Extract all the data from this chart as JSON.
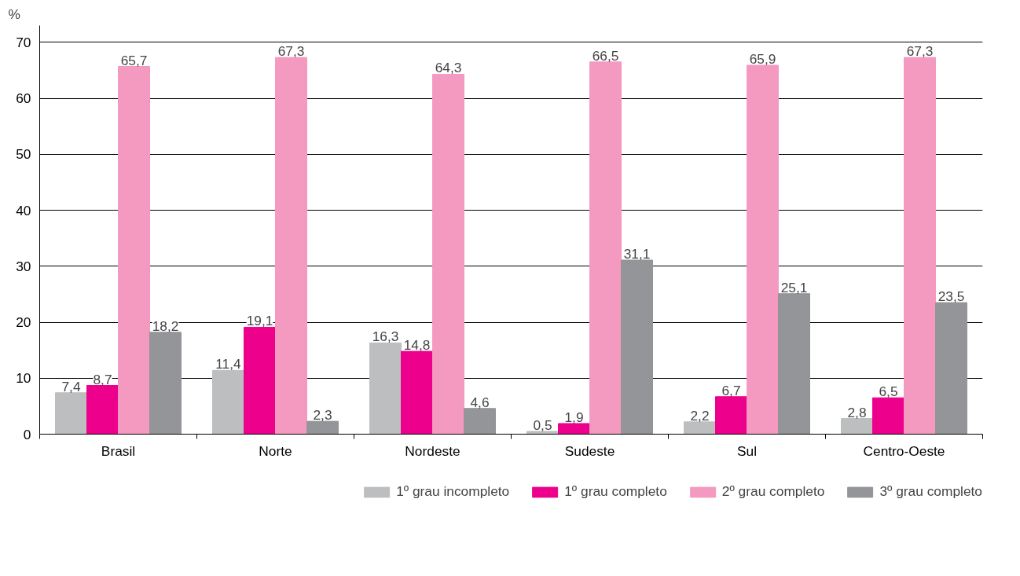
{
  "chart_data": {
    "type": "bar",
    "ylabel": "%",
    "categories": [
      "Brasil",
      "Norte",
      "Nordeste",
      "Sudeste",
      "Sul",
      "Centro-Oeste"
    ],
    "series": [
      {
        "name": "1º grau incompleto",
        "color": "#bcbec0",
        "values": [
          7.4,
          11.4,
          16.3,
          0.5,
          2.2,
          2.8
        ],
        "value_labels": [
          "7,4",
          "11,4",
          "16,3",
          "0,5",
          "2,2",
          "2,8"
        ]
      },
      {
        "name": "1º grau completo",
        "color": "#ec008c",
        "values": [
          8.7,
          19.1,
          14.8,
          1.9,
          6.7,
          6.5
        ],
        "value_labels": [
          "8,7",
          "19,1",
          "14,8",
          "1,9",
          "6,7",
          "6,5"
        ]
      },
      {
        "name": "2º grau completo",
        "color": "#f49ac1",
        "values": [
          65.7,
          67.3,
          64.3,
          66.5,
          65.9,
          67.3
        ],
        "value_labels": [
          "65,7",
          "67,3",
          "64,3",
          "66,5",
          "65,9",
          "67,3"
        ]
      },
      {
        "name": "3º grau completo",
        "color": "#939598",
        "values": [
          18.2,
          2.3,
          4.6,
          31.1,
          25.1,
          23.5
        ],
        "value_labels": [
          "18,2",
          "2,3",
          "4,6",
          "31,1",
          "25,1",
          "23,5"
        ]
      }
    ],
    "ylim": [
      0,
      73
    ],
    "yticks": [
      0,
      10,
      20,
      30,
      40,
      50,
      60,
      70
    ],
    "grid": "y",
    "legend": "bottom right"
  }
}
